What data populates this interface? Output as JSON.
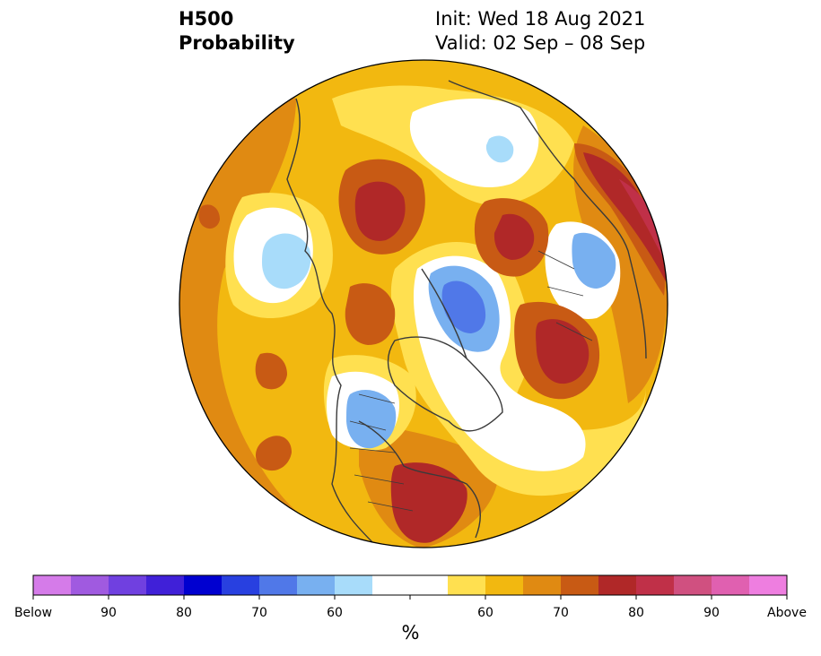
{
  "title": {
    "product": "H500",
    "type": "Probability",
    "init": "Init: Wed 18 Aug 2021",
    "valid": "Valid: 02 Sep – 08 Sep"
  },
  "colorbar": {
    "unit": "%",
    "colors": [
      "#d57be9",
      "#a05ae0",
      "#7040e0",
      "#4020d8",
      "#0000d0",
      "#2840e0",
      "#5078e8",
      "#78b0f0",
      "#a8dcfa",
      "#ffffff",
      "#ffffff",
      "#ffe050",
      "#f2b810",
      "#e08a12",
      "#c85a14",
      "#b02828",
      "#c03048",
      "#d05080",
      "#e060b0",
      "#ee7ee0"
    ],
    "labels": [
      "Below",
      "90",
      "80",
      "70",
      "60",
      "",
      "60",
      "70",
      "80",
      "90",
      "Above"
    ]
  },
  "map": {
    "projection": "north-polar-stereographic",
    "background_color": "#f2b810",
    "features": [
      {
        "name": "above-80-siberia",
        "category": "above",
        "level": 80,
        "color": "#b02828"
      },
      {
        "name": "above-80-us-southeast",
        "category": "above",
        "level": 80,
        "color": "#b02828"
      },
      {
        "name": "above-80-north-atlantic",
        "category": "above",
        "level": 80,
        "color": "#b02828"
      },
      {
        "name": "above-80-europe-east",
        "category": "above",
        "level": 80,
        "color": "#b02828"
      },
      {
        "name": "above-90-europe-east",
        "category": "above",
        "level": 90,
        "color": "#c03048"
      },
      {
        "name": "below-70-greenland",
        "category": "below",
        "level": 70,
        "color": "#5078e8"
      },
      {
        "name": "below-60-canada-west",
        "category": "below",
        "level": 60,
        "color": "#78b0f0"
      },
      {
        "name": "below-60-pacific",
        "category": "below",
        "level": 60,
        "color": "#a8dcfa"
      },
      {
        "name": "below-60-scandinavia",
        "category": "below",
        "level": 60,
        "color": "#78b0f0"
      },
      {
        "name": "below-60-arctic",
        "category": "below",
        "level": 60,
        "color": "#a8dcfa"
      }
    ]
  }
}
